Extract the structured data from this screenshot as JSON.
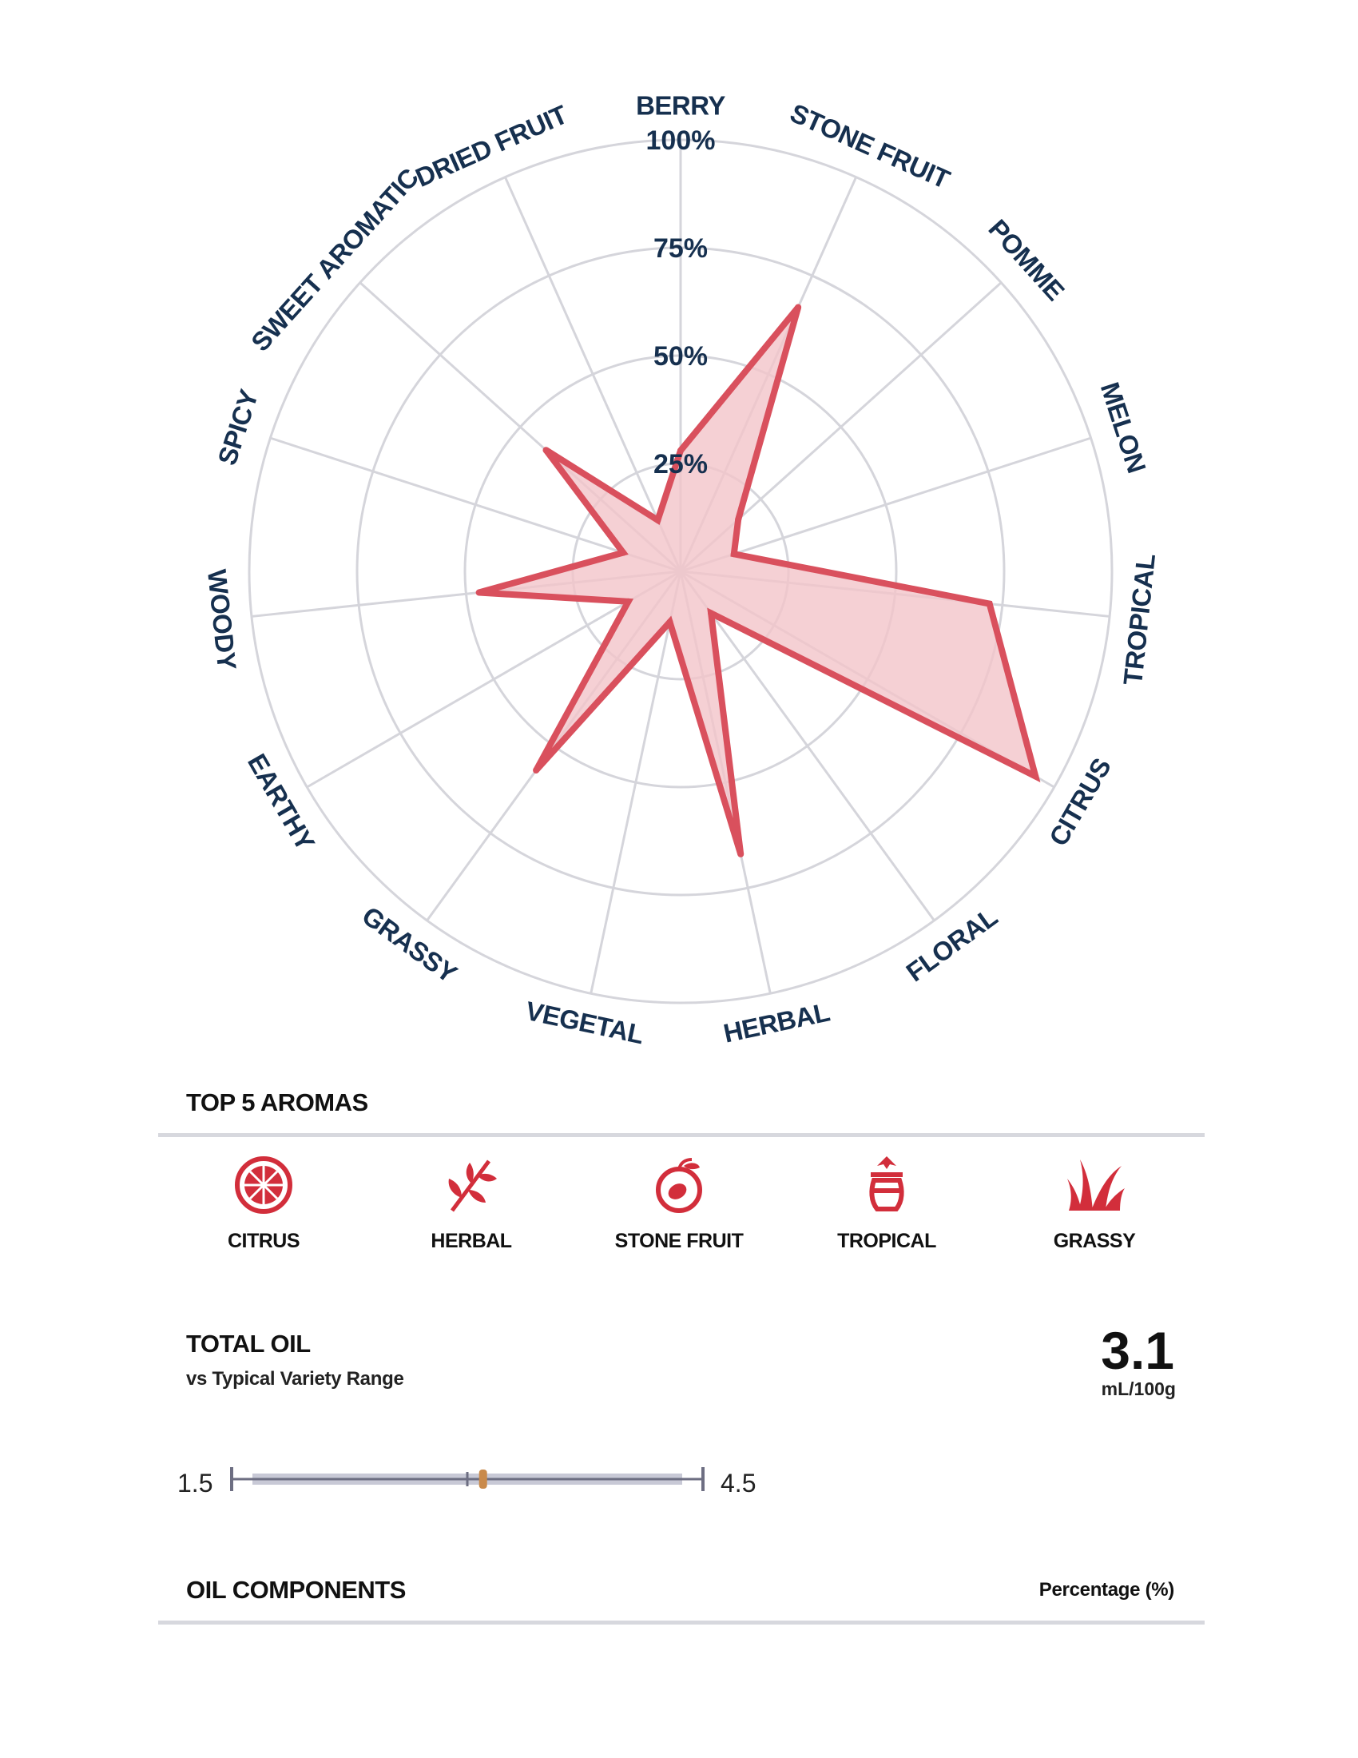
{
  "chart_data": {
    "type": "radar",
    "axes": [
      "BERRY",
      "STONE FRUIT",
      "POMME",
      "MELON",
      "TROPICAL",
      "CITRUS",
      "FLORAL",
      "HERBAL",
      "VEGETAL",
      "GRASSY",
      "EARTHY",
      "WOODY",
      "SPICY",
      "SWEET AROMATIC",
      "DRIED FRUIT"
    ],
    "values": [
      28,
      67,
      18,
      13,
      72,
      95,
      12,
      67,
      12,
      57,
      14,
      47,
      14,
      42,
      13
    ],
    "rlim": [
      0,
      100
    ],
    "ticks": [
      "25%",
      "50%",
      "75%",
      "100%"
    ],
    "grid": true,
    "colors": {
      "fill": "#f2c4c9",
      "stroke": "#d9505d",
      "grid": "#d5d5db",
      "label": "#16304f"
    }
  },
  "top_aromas": {
    "title": "TOP 5 AROMAS",
    "items": [
      {
        "label": "CITRUS",
        "icon": "citrus-icon"
      },
      {
        "label": "HERBAL",
        "icon": "herb-icon"
      },
      {
        "label": "STONE FRUIT",
        "icon": "stone-fruit-icon"
      },
      {
        "label": "TROPICAL",
        "icon": "pineapple-icon"
      },
      {
        "label": "GRASSY",
        "icon": "grass-icon"
      }
    ],
    "icon_color": "#d22e3b"
  },
  "total_oil": {
    "title": "TOTAL OIL",
    "subtitle": "vs Typical Variety Range",
    "value": "3.1",
    "unit": "mL/100g",
    "range_min": "1.5",
    "range_max": "4.5",
    "range_min_value": 1.5,
    "range_max_value": 4.5,
    "marker_value": 3.1,
    "midline_value": 3.0,
    "marker_color": "#c98a4b"
  },
  "oil_components": {
    "title": "OIL COMPONENTS",
    "column_label": "Percentage (%)"
  }
}
